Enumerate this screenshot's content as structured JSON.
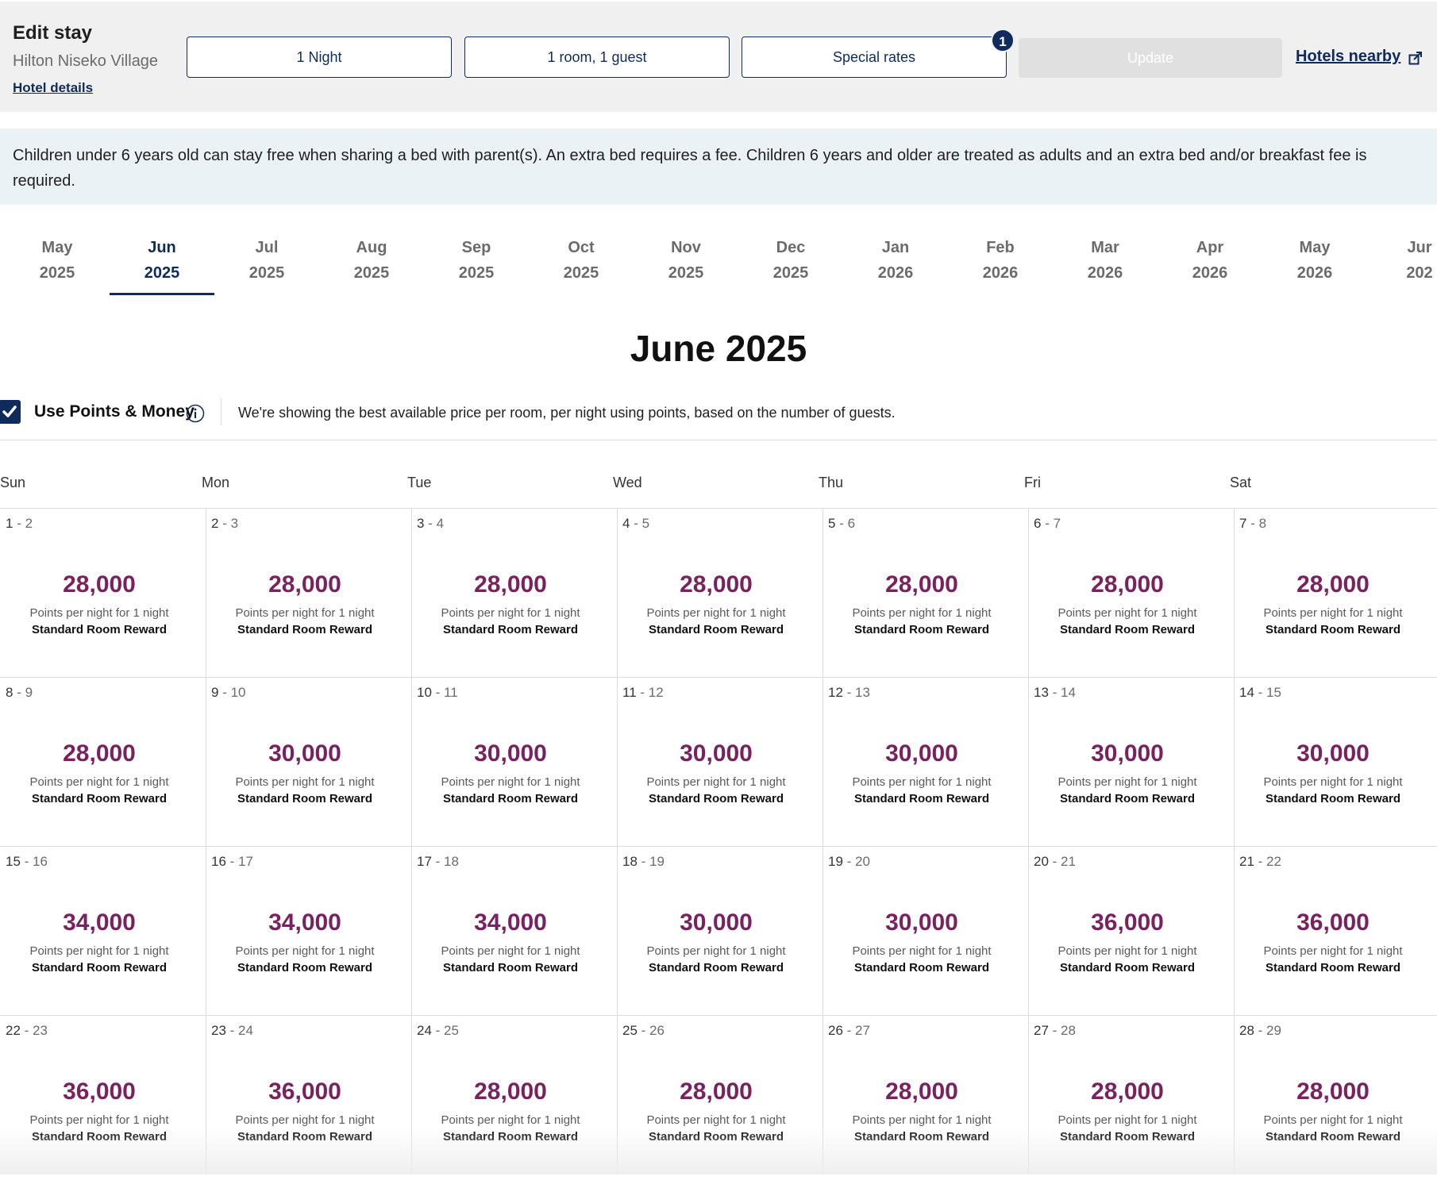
{
  "header": {
    "title": "Edit stay",
    "hotel_name": "Hilton Niseko Village",
    "hotel_details_link": "Hotel details",
    "nights_button": "1 Night",
    "rooms_button": "1 room, 1 guest",
    "special_rates_button": "Special rates",
    "special_rates_badge": "1",
    "update_button": "Update",
    "hotels_nearby_link": "Hotels nearby"
  },
  "banner": {
    "text": "Children under 6 years old can stay free when sharing a bed with parent(s). An extra bed requires a fee. Children 6 years and older are treated as adults and an extra bed and/or breakfast fee is required."
  },
  "months": [
    {
      "month": "May",
      "year": "2025"
    },
    {
      "month": "Jun",
      "year": "2025",
      "active": true
    },
    {
      "month": "Jul",
      "year": "2025"
    },
    {
      "month": "Aug",
      "year": "2025"
    },
    {
      "month": "Sep",
      "year": "2025"
    },
    {
      "month": "Oct",
      "year": "2025"
    },
    {
      "month": "Nov",
      "year": "2025"
    },
    {
      "month": "Dec",
      "year": "2025"
    },
    {
      "month": "Jan",
      "year": "2026"
    },
    {
      "month": "Feb",
      "year": "2026"
    },
    {
      "month": "Mar",
      "year": "2026"
    },
    {
      "month": "Apr",
      "year": "2026"
    },
    {
      "month": "May",
      "year": "2026"
    },
    {
      "month": "Jur",
      "year": "202"
    }
  ],
  "calendar_title": "June 2025",
  "points_toggle": {
    "label": "Use Points & Money",
    "checked": true,
    "note": "We're showing the best available price per room, per night using points, based on the number of guests."
  },
  "weekdays": [
    "Sun",
    "Mon",
    "Tue",
    "Wed",
    "Thu",
    "Fri",
    "Sat"
  ],
  "cell_labels": {
    "per_night": "Points per night for 1 night",
    "room_type": "Standard Room Reward"
  },
  "days": [
    {
      "from": "1",
      "to": "2",
      "points": "28,000"
    },
    {
      "from": "2",
      "to": "3",
      "points": "28,000"
    },
    {
      "from": "3",
      "to": "4",
      "points": "28,000"
    },
    {
      "from": "4",
      "to": "5",
      "points": "28,000"
    },
    {
      "from": "5",
      "to": "6",
      "points": "28,000"
    },
    {
      "from": "6",
      "to": "7",
      "points": "28,000"
    },
    {
      "from": "7",
      "to": "8",
      "points": "28,000"
    },
    {
      "from": "8",
      "to": "9",
      "points": "28,000"
    },
    {
      "from": "9",
      "to": "10",
      "points": "30,000"
    },
    {
      "from": "10",
      "to": "11",
      "points": "30,000"
    },
    {
      "from": "11",
      "to": "12",
      "points": "30,000"
    },
    {
      "from": "12",
      "to": "13",
      "points": "30,000"
    },
    {
      "from": "13",
      "to": "14",
      "points": "30,000"
    },
    {
      "from": "14",
      "to": "15",
      "points": "30,000"
    },
    {
      "from": "15",
      "to": "16",
      "points": "34,000"
    },
    {
      "from": "16",
      "to": "17",
      "points": "34,000"
    },
    {
      "from": "17",
      "to": "18",
      "points": "34,000"
    },
    {
      "from": "18",
      "to": "19",
      "points": "30,000"
    },
    {
      "from": "19",
      "to": "20",
      "points": "30,000"
    },
    {
      "from": "20",
      "to": "21",
      "points": "36,000"
    },
    {
      "from": "21",
      "to": "22",
      "points": "36,000"
    },
    {
      "from": "22",
      "to": "23",
      "points": "36,000"
    },
    {
      "from": "23",
      "to": "24",
      "points": "36,000"
    },
    {
      "from": "24",
      "to": "25",
      "points": "28,000"
    },
    {
      "from": "25",
      "to": "26",
      "points": "28,000"
    },
    {
      "from": "26",
      "to": "27",
      "points": "28,000"
    },
    {
      "from": "27",
      "to": "28",
      "points": "28,000"
    },
    {
      "from": "28",
      "to": "29",
      "points": "28,000"
    }
  ],
  "colors": {
    "brand_navy": "#0f2b5b",
    "points_purple": "#7a2260",
    "banner_bg": "#ebf2f5",
    "header_bg": "#f0f0f0"
  }
}
